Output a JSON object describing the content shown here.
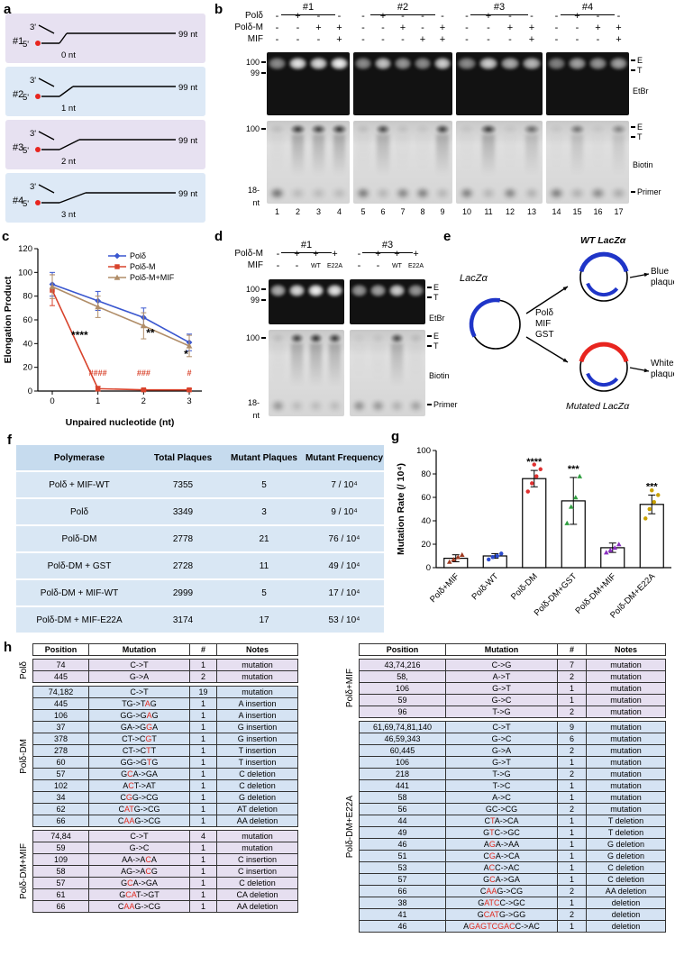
{
  "labels": {
    "a": "a",
    "b": "b",
    "c": "c",
    "d": "d",
    "e": "e",
    "f": "f",
    "g": "g",
    "h": "h"
  },
  "panels": {
    "a": {
      "three_prime": "3'",
      "five_prime": "5'",
      "substrates": [
        {
          "id": "#1",
          "unpaired": 0,
          "gap_label": "0 nt",
          "length_label": "99 nt",
          "bg": "#e7e1f1"
        },
        {
          "id": "#2",
          "unpaired": 1,
          "gap_label": "1 nt",
          "length_label": "99 nt",
          "bg": "#dde9f6"
        },
        {
          "id": "#3",
          "unpaired": 2,
          "gap_label": "2 nt",
          "length_label": "99 nt",
          "bg": "#e7e1f1"
        },
        {
          "id": "#4",
          "unpaired": 3,
          "gap_label": "3 nt",
          "length_label": "99 nt",
          "bg": "#dde9f6"
        }
      ]
    },
    "b": {
      "row_labels": [
        "Polδ",
        "Polδ-M",
        "MIF"
      ],
      "lane_numbers": [
        "1",
        "2",
        "3",
        "4",
        "5",
        "6",
        "7",
        "8",
        "9",
        "10",
        "11",
        "12",
        "13",
        "14",
        "15",
        "16",
        "17"
      ],
      "size_markers": {
        "etbr": [
          "100",
          "99"
        ],
        "biotin": [
          "100"
        ],
        "primer": [
          "18-",
          "nt"
        ]
      },
      "band_labels": {
        "etbr": [
          "E",
          "T"
        ],
        "etbr_stain": "EtBr",
        "biotin": [
          "E",
          "T"
        ],
        "biotin_stain": "Biotin",
        "primer": "Primer"
      },
      "groups": [
        {
          "name": "#1",
          "lanes": [
            {
              "marks": [
                "-",
                "-",
                "-"
              ],
              "etbr": 0.55,
              "prod": 0.1,
              "primer": 0.9
            },
            {
              "marks": [
                "+",
                "-",
                "-"
              ],
              "etbr": 0.95,
              "prod": 0.9,
              "primer": 0.25
            },
            {
              "marks": [
                "-",
                "+",
                "-"
              ],
              "etbr": 0.9,
              "prod": 0.85,
              "primer": 0.25
            },
            {
              "marks": [
                "-",
                "+",
                "+"
              ],
              "etbr": 1,
              "prod": 0.92,
              "primer": 0.25
            }
          ]
        },
        {
          "name": "#2",
          "lanes": [
            {
              "marks": [
                "-",
                "-",
                "-"
              ],
              "etbr": 0.55,
              "prod": 0.1,
              "primer": 0.85
            },
            {
              "marks": [
                "+",
                "-",
                "-"
              ],
              "etbr": 0.8,
              "prod": 0.8,
              "primer": 0.3
            },
            {
              "marks": [
                "-",
                "+",
                "-"
              ],
              "etbr": 0.6,
              "prod": 0.08,
              "primer": 0.75
            },
            {
              "marks": [
                "-",
                "-",
                "+"
              ],
              "etbr": 0.55,
              "prod": 0.06,
              "primer": 0.8
            },
            {
              "marks": [
                "-",
                "+",
                "+"
              ],
              "etbr": 0.85,
              "prod": 0.85,
              "primer": 0.3
            }
          ]
        },
        {
          "name": "#3",
          "lanes": [
            {
              "marks": [
                "-",
                "-",
                "-"
              ],
              "etbr": 0.55,
              "prod": 0.06,
              "primer": 0.8
            },
            {
              "marks": [
                "+",
                "-",
                "-"
              ],
              "etbr": 0.85,
              "prod": 0.88,
              "primer": 0.3
            },
            {
              "marks": [
                "-",
                "+",
                "-"
              ],
              "etbr": 0.7,
              "prod": 0.05,
              "primer": 0.75
            },
            {
              "marks": [
                "-",
                "+",
                "+"
              ],
              "etbr": 0.75,
              "prod": 0.6,
              "primer": 0.35
            }
          ]
        },
        {
          "name": "#4",
          "lanes": [
            {
              "marks": [
                "-",
                "-",
                "-"
              ],
              "etbr": 0.5,
              "prod": 0.05,
              "primer": 0.8
            },
            {
              "marks": [
                "+",
                "-",
                "-"
              ],
              "etbr": 0.65,
              "prod": 0.55,
              "primer": 0.35
            },
            {
              "marks": [
                "-",
                "+",
                "-"
              ],
              "etbr": 0.6,
              "prod": 0.05,
              "primer": 0.7
            },
            {
              "marks": [
                "-",
                "+",
                "+"
              ],
              "etbr": 0.65,
              "prod": 0.45,
              "primer": 0.4
            }
          ]
        }
      ]
    },
    "d": {
      "row_labels": [
        "Polδ-M",
        "MIF"
      ],
      "size_markers": {
        "etbr": [
          "100",
          "99"
        ],
        "biotin": [
          "100"
        ],
        "primer": [
          "18-",
          "nt"
        ]
      },
      "band_labels": {
        "etbr": [
          "E",
          "T"
        ],
        "etbr_stain": "EtBr",
        "biotin": [
          "E",
          "T"
        ],
        "biotin_stain": "Biotin",
        "primer": "Primer"
      },
      "groups": [
        {
          "name": "#1",
          "lanes": [
            {
              "marks": [
                "-",
                "-"
              ],
              "etbr": 0.7,
              "prod": 0.1,
              "primer": 0.6
            },
            {
              "marks": [
                "+",
                "-"
              ],
              "etbr": 0.9,
              "prod": 0.85,
              "primer": 0.25
            },
            {
              "marks": [
                "+",
                "WT"
              ],
              "etbr": 1,
              "prod": 0.95,
              "primer": 0.25
            },
            {
              "marks": [
                "+",
                "E22A"
              ],
              "etbr": 0.95,
              "prod": 0.9,
              "primer": 0.25
            }
          ]
        },
        {
          "name": "#3",
          "lanes": [
            {
              "marks": [
                "-",
                "-"
              ],
              "etbr": 0.6,
              "prod": 0.04,
              "primer": 0.65
            },
            {
              "marks": [
                "+",
                "-"
              ],
              "etbr": 0.65,
              "prod": 0.07,
              "primer": 0.6
            },
            {
              "marks": [
                "+",
                "WT"
              ],
              "etbr": 0.85,
              "prod": 0.8,
              "primer": 0.35
            },
            {
              "marks": [
                "+",
                "E22A"
              ],
              "etbr": 0.6,
              "prod": 0.12,
              "primer": 0.5
            }
          ]
        }
      ]
    },
    "e": {
      "plasmid_label": "LacZα",
      "enzymes": [
        "Polδ",
        "MIF",
        "GST"
      ],
      "wt_label": "WT LacZα",
      "mutated_label": "Mutated LacZα",
      "blue_plaque": [
        "Blue",
        "plaque"
      ],
      "white_plaque": [
        "White",
        "plaque"
      ],
      "blue": "#1f35c8",
      "red": "#e8251f"
    },
    "f": {
      "headers": [
        "Polymerase",
        "Total Plaques",
        "Mutant Plaques",
        "Mutant Frequency"
      ],
      "rows": [
        [
          "Polδ + MIF-WT",
          "7355",
          "5",
          "7 / 10⁴"
        ],
        [
          "Polδ",
          "3349",
          "3",
          "9 / 10⁴"
        ],
        [
          "Polδ-DM",
          "2778",
          "21",
          "76 / 10⁴"
        ],
        [
          "Polδ-DM + GST",
          "2728",
          "11",
          "49 / 10⁴"
        ],
        [
          "Polδ-DM + MIF-WT",
          "2999",
          "5",
          "17 / 10⁴"
        ],
        [
          "Polδ-DM + MIF-E22A",
          "3174",
          "17",
          "53 / 10⁴"
        ]
      ]
    },
    "h": {
      "columns": [
        "Position",
        "Mutation",
        "#",
        "Notes"
      ],
      "left_sections": [
        {
          "side": "Polδ",
          "bg": "#e6dff0",
          "rows": [
            [
              "74",
              "C->T",
              "1",
              "mutation"
            ],
            [
              "445",
              "G->A",
              "2",
              "mutation"
            ]
          ]
        },
        {
          "side": "Polδ-DM",
          "bg": "#d5e3f3",
          "rows": [
            [
              "74,182",
              "C->T",
              "19",
              "mutation"
            ],
            [
              "445",
              "TG->T*A*G",
              "1",
              "A insertion"
            ],
            [
              "106",
              "GG->G*A*G",
              "1",
              "A insertion"
            ],
            [
              "37",
              "GA->G*G*A",
              "1",
              "G insertion"
            ],
            [
              "378",
              "CT->C*G*T",
              "1",
              "G insertion"
            ],
            [
              "278",
              "CT->C*T*T",
              "1",
              "T insertion"
            ],
            [
              "60",
              "GG->G*T*G",
              "1",
              "T insertion"
            ],
            [
              "57",
              "G*C*A->GA",
              "1",
              "C deletion"
            ],
            [
              "102",
              "A*C*T->AT",
              "1",
              "C deletion"
            ],
            [
              "34",
              "C*G*G->CG",
              "1",
              "G deletion"
            ],
            [
              "62",
              "C*AT*G->CG",
              "1",
              "AT deletion"
            ],
            [
              "66",
              "C*AA*G->CG",
              "1",
              "AA deletion"
            ]
          ]
        },
        {
          "side": "Polδ-DM+MIF",
          "bg": "#e6dff0",
          "rows": [
            [
              "74,84",
              "C->T",
              "4",
              "mutation"
            ],
            [
              "59",
              "G->C",
              "1",
              "mutation"
            ],
            [
              "109",
              "AA->A*C*A",
              "1",
              "C insertion"
            ],
            [
              "58",
              "AG->A*C*G",
              "1",
              "C insertion"
            ],
            [
              "57",
              "G*C*A->GA",
              "1",
              "C deletion"
            ],
            [
              "61",
              "G*CA*T->GT",
              "1",
              "CA deletion"
            ],
            [
              "66",
              "C*AA*G->CG",
              "1",
              "AA deletion"
            ]
          ]
        }
      ],
      "right_sections": [
        {
          "side": "Polδ+MIF",
          "bg": "#e6dff0",
          "rows": [
            [
              "43,74,216",
              "C->G",
              "7",
              "mutation"
            ],
            [
              "58,",
              "A->T",
              "2",
              "mutation"
            ],
            [
              "106",
              "G->T",
              "1",
              "mutation"
            ],
            [
              "59",
              "G->C",
              "1",
              "mutation"
            ],
            [
              "96",
              "T->G",
              "2",
              "mutation"
            ]
          ]
        },
        {
          "side": "Polδ-DM+E22A",
          "bg": "#d5e3f3",
          "rows": [
            [
              "61,69,74,81,140",
              "C->T",
              "9",
              "mutation"
            ],
            [
              "46,59,343",
              "G->C",
              "6",
              "mutation"
            ],
            [
              "60,445",
              "G->A",
              "2",
              "mutation"
            ],
            [
              "106",
              "G->T",
              "1",
              "mutation"
            ],
            [
              "218",
              "T->G",
              "2",
              "mutation"
            ],
            [
              "441",
              "T->C",
              "1",
              "mutation"
            ],
            [
              "58",
              "A->C",
              "1",
              "mutation"
            ],
            [
              "56",
              "GC->CG",
              "2",
              "mutation"
            ],
            [
              "44",
              "C*T*A->CA",
              "1",
              "T deletion"
            ],
            [
              "49",
              "G*T*C->GC",
              "1",
              "T deletion"
            ],
            [
              "46",
              "A*G*A->AA",
              "1",
              "G deletion"
            ],
            [
              "51",
              "C*G*A->CA",
              "1",
              "G deletion"
            ],
            [
              "53",
              "A*C*C->AC",
              "1",
              "C deletion"
            ],
            [
              "57",
              "G*C*A->GA",
              "1",
              "C deletion"
            ],
            [
              "66",
              "C*AA*G->CG",
              "2",
              "AA deletion"
            ],
            [
              "38",
              "G*ATC*C->GC",
              "1",
              "deletion"
            ],
            [
              "41",
              "G*CAT*G->GG",
              "2",
              "deletion"
            ],
            [
              "46",
              "A*GAGTCGAC*C->AC",
              "1",
              "deletion"
            ]
          ]
        }
      ]
    }
  },
  "chart_data": [
    {
      "panel": "c",
      "type": "line",
      "x": [
        0,
        1,
        2,
        3
      ],
      "xlabel": "Unpaired nucleotide (nt)",
      "ylabel": "Elongation Product",
      "ylim": [
        0,
        120
      ],
      "yticks": [
        0,
        20,
        40,
        60,
        80,
        100,
        120
      ],
      "legend_position": "top-right",
      "series": [
        {
          "name": "Polδ",
          "color": "#3a57cf",
          "marker": "diamond",
          "values": [
            90,
            76,
            62,
            41
          ],
          "errors": [
            10,
            8,
            8,
            7
          ]
        },
        {
          "name": "Polδ-M",
          "color": "#d8432c",
          "marker": "square",
          "values": [
            85,
            2,
            1,
            1
          ],
          "errors": [
            13,
            2,
            1,
            1
          ]
        },
        {
          "name": "Polδ-M+MIF",
          "color": "#b08d68",
          "marker": "triangle",
          "values": [
            88,
            71,
            55,
            38
          ],
          "errors": [
            10,
            9,
            11,
            9
          ]
        }
      ],
      "annotations": [
        {
          "text": "****",
          "x": 0.6,
          "y": 44,
          "color": "#000000"
        },
        {
          "text": "**",
          "x": 2.15,
          "y": 46,
          "color": "#000000"
        },
        {
          "text": "*",
          "x": 2.93,
          "y": 28,
          "color": "#000000"
        },
        {
          "text": "####",
          "x": 1,
          "y": 13,
          "color": "#d8432c"
        },
        {
          "text": "###",
          "x": 2,
          "y": 13,
          "color": "#d8432c"
        },
        {
          "text": "#",
          "x": 3,
          "y": 13,
          "color": "#d8432c"
        }
      ]
    },
    {
      "panel": "g",
      "type": "bar",
      "categories": [
        "Polδ+MIF",
        "Polδ-WT",
        "Polδ-DM",
        "Polδ-DM+GST",
        "Polδ-DM+MIF",
        "Polδ-DM+E22A"
      ],
      "values": [
        8,
        10,
        76,
        57,
        17,
        54
      ],
      "errors": [
        3,
        2,
        7,
        20,
        4,
        8
      ],
      "points": [
        [
          5,
          7,
          9,
          11
        ],
        [
          7,
          9,
          10,
          12
        ],
        [
          65,
          72,
          78,
          84,
          88
        ],
        [
          38,
          52,
          60,
          78
        ],
        [
          13,
          15,
          17,
          20
        ],
        [
          42,
          50,
          56,
          62,
          66
        ]
      ],
      "point_colors": [
        "#a03a20",
        "#2b4bce",
        "#e03030",
        "#2f9e3f",
        "#8a2fc0",
        "#c9a100"
      ],
      "point_markers": [
        "triangle",
        "circle",
        "circle",
        "triangle",
        "triangle",
        "circle"
      ],
      "ylabel": "Mutation Rate (/ 10⁴)",
      "ylim": [
        0,
        100
      ],
      "yticks": [
        0,
        20,
        40,
        60,
        80,
        100
      ],
      "bar_fill": "#ffffff",
      "bar_stroke": "#000000",
      "annotations": [
        {
          "text": "****",
          "cat": 2
        },
        {
          "text": "***",
          "cat": 3
        },
        {
          "text": "***",
          "cat": 5
        }
      ]
    }
  ]
}
